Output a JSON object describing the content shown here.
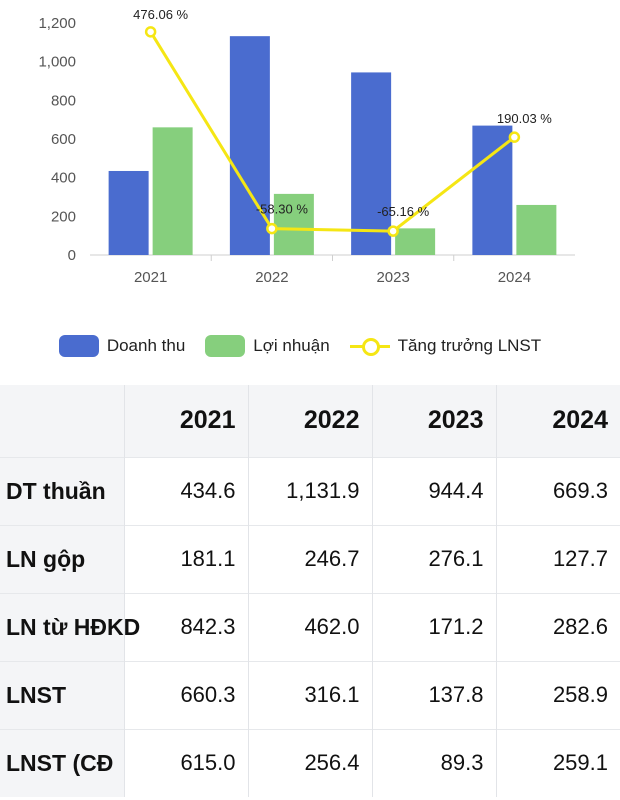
{
  "chart_data": {
    "type": "bar",
    "categories": [
      "2021",
      "2022",
      "2023",
      "2024"
    ],
    "y_ticks": [
      "0",
      "200",
      "400",
      "600",
      "800",
      "1,000",
      "1,200"
    ],
    "ylim": [
      0,
      1200
    ],
    "series": [
      {
        "name": "Doanh thu",
        "type": "bar",
        "color": "#4a6ccf",
        "values": [
          434.6,
          1131.9,
          944.4,
          669.3
        ]
      },
      {
        "name": "Lợi nhuận",
        "type": "bar",
        "color": "#86cf7d",
        "values": [
          660.3,
          316.1,
          137.8,
          258.9
        ]
      },
      {
        "name": "Tăng trưởng LNST",
        "type": "line",
        "color": "#f5e614",
        "values": [
          476.06,
          -58.3,
          -65.16,
          190.03
        ],
        "labels": [
          "476.06 %",
          "-58.30 %",
          "-65.16 %",
          "190.03 %"
        ]
      }
    ],
    "legend_position": "bottom",
    "grid": false
  },
  "legend": {
    "items": [
      {
        "label": "Doanh thu",
        "color": "#4a6ccf"
      },
      {
        "label": "Lợi nhuận",
        "color": "#86cf7d"
      },
      {
        "label": "Tăng trưởng LNST",
        "color": "#f5e614"
      }
    ]
  },
  "table": {
    "years": [
      "2021",
      "2022",
      "2023",
      "2024"
    ],
    "rows": [
      {
        "label": "DT thuần",
        "values": [
          "434.6",
          "1,131.9",
          "944.4",
          "669.3"
        ]
      },
      {
        "label": "LN gộp",
        "values": [
          "181.1",
          "246.7",
          "276.1",
          "127.7"
        ]
      },
      {
        "label": "LN từ HĐKD",
        "values": [
          "842.3",
          "462.0",
          "171.2",
          "282.6"
        ]
      },
      {
        "label": "LNST",
        "values": [
          "660.3",
          "316.1",
          "137.8",
          "258.9"
        ]
      },
      {
        "label": "LNST (CĐ",
        "values": [
          "615.0",
          "256.4",
          "89.3",
          "259.1"
        ]
      }
    ]
  }
}
